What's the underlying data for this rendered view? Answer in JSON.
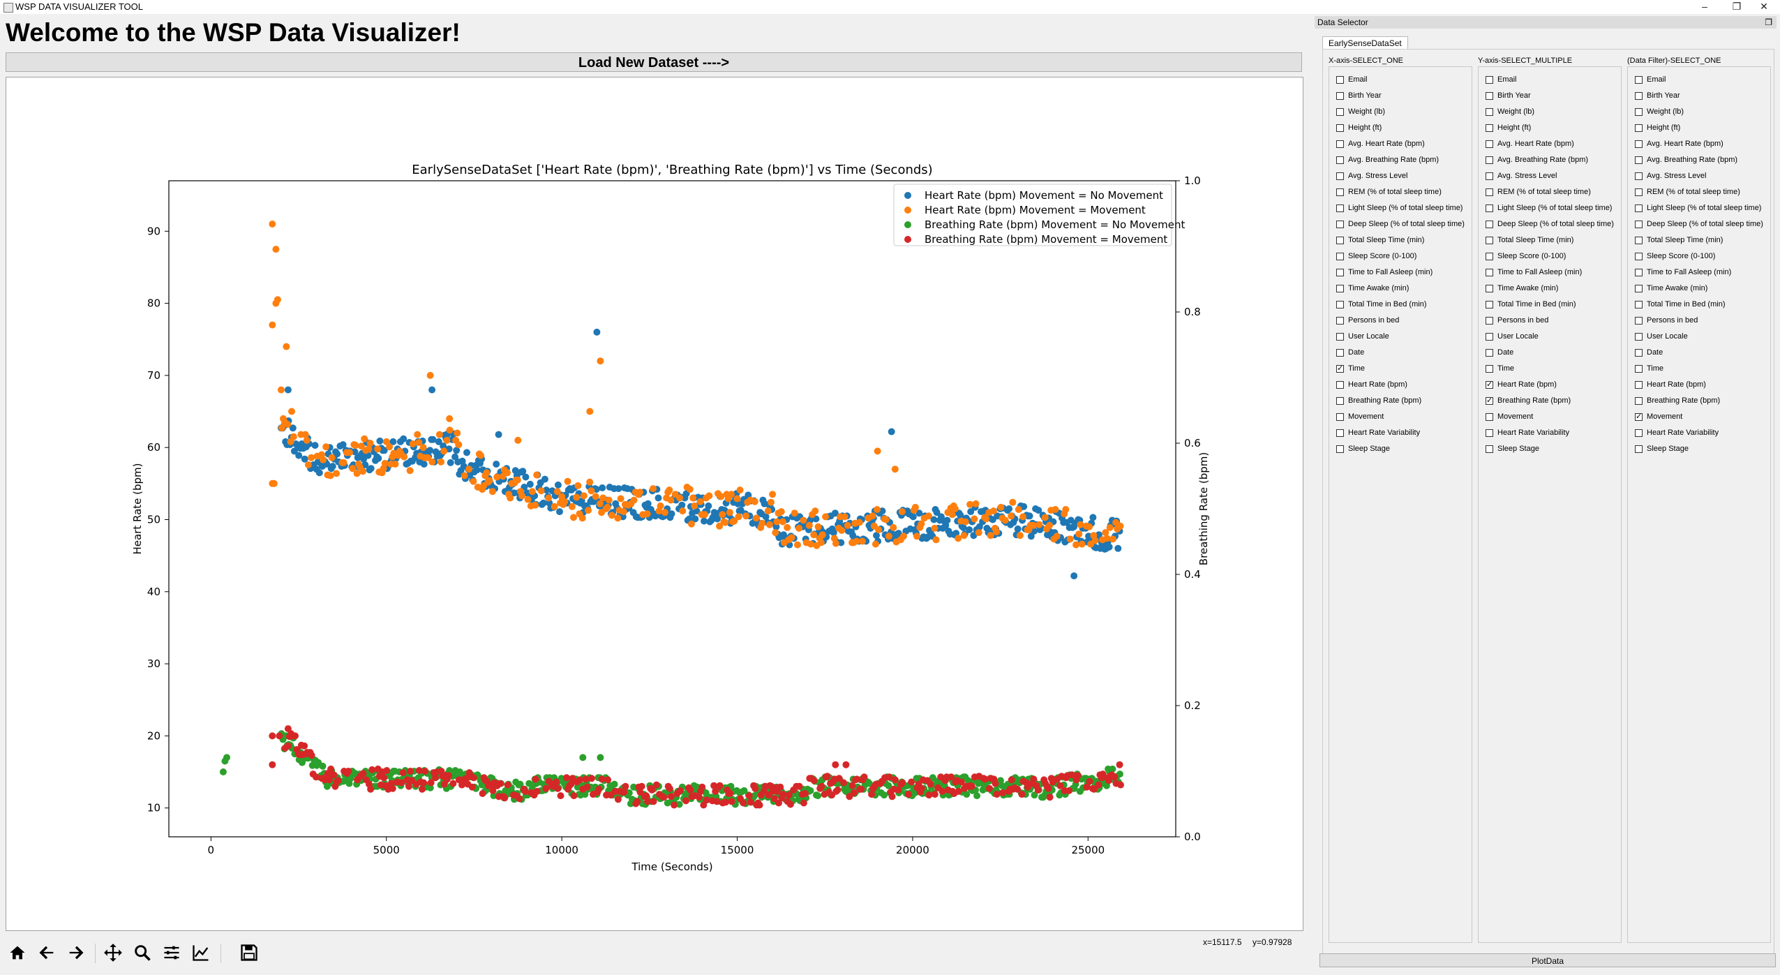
{
  "window": {
    "title": "WSP DATA VISUALIZER TOOL",
    "minimize": "–",
    "restore": "❐",
    "close": "✕"
  },
  "header": {
    "welcome": "Welcome to the WSP Data Visualizer!",
    "load_button": "Load New Dataset ---->"
  },
  "toolbar": {
    "icons": [
      "home-icon",
      "back-arrow-icon",
      "forward-arrow-icon",
      "pan-icon",
      "zoom-icon",
      "configure-subplots-icon",
      "edit-axis-icon",
      "save-icon"
    ]
  },
  "coords": {
    "x": "x=15117.5",
    "y": "y=0.97928"
  },
  "dock": {
    "title": "Data Selector",
    "tab": "EarlySenseDataSet",
    "plot_button": "PlotData",
    "columns": [
      {
        "title": "X-axis-SELECT_ONE",
        "checked": [
          "Time"
        ]
      },
      {
        "title": "Y-axis-SELECT_MULTIPLE",
        "checked": [
          "Heart Rate (bpm)",
          "Breathing Rate (bpm)"
        ]
      },
      {
        "title": "(Data Filter)-SELECT_ONE",
        "checked": [
          "Movement"
        ]
      }
    ],
    "options": [
      "Email",
      "Birth Year",
      "Weight (lb)",
      "Height (ft)",
      "Avg. Heart Rate (bpm)",
      "Avg. Breathing Rate (bpm)",
      "Avg. Stress Level",
      "REM (% of total sleep time)",
      "Light Sleep (% of total sleep time)",
      "Deep Sleep (% of total sleep time)",
      "Total Sleep Time (min)",
      "Sleep Score (0-100)",
      "Time to Fall Asleep (min)",
      "Time Awake (min)",
      "Total Time in Bed (min)",
      "Persons in bed",
      "User Locale",
      "Date",
      "Time",
      "Heart Rate (bpm)",
      "Breathing Rate (bpm)",
      "Movement",
      "Heart Rate Variability",
      "Sleep Stage"
    ]
  },
  "chart_data": {
    "type": "scatter",
    "title": "EarlySenseDataSet ['Heart Rate (bpm)', 'Breathing Rate (bpm)'] vs Time (Seconds)",
    "xlabel": "Time (Seconds)",
    "ylabel": "Heart Rate (bpm)",
    "y2label": "Breathing Rate (bpm)",
    "xlim": [
      -1200,
      27500
    ],
    "ylim": [
      6,
      97
    ],
    "y2lim": [
      0.0,
      1.0
    ],
    "xticks": [
      0,
      5000,
      10000,
      15000,
      20000,
      25000
    ],
    "yticks": [
      10,
      20,
      30,
      40,
      50,
      60,
      70,
      80,
      90
    ],
    "y2ticks": [
      0.0,
      0.2,
      0.4,
      0.6,
      0.8,
      1.0
    ],
    "legend_position": "top-right",
    "grid": false,
    "series": [
      {
        "name": "Heart Rate (bpm) Movement = No Movement",
        "color": "#1f77b4",
        "points": []
      },
      {
        "name": "Heart Rate (bpm) Movement = Movement",
        "color": "#ff7f0e",
        "points": []
      },
      {
        "name": "Breathing Rate (bpm) Movement = No Movement",
        "color": "#2ca02c",
        "points": []
      },
      {
        "name": "Breathing Rate (bpm) Movement = Movement",
        "color": "#d62728",
        "points": []
      }
    ]
  }
}
